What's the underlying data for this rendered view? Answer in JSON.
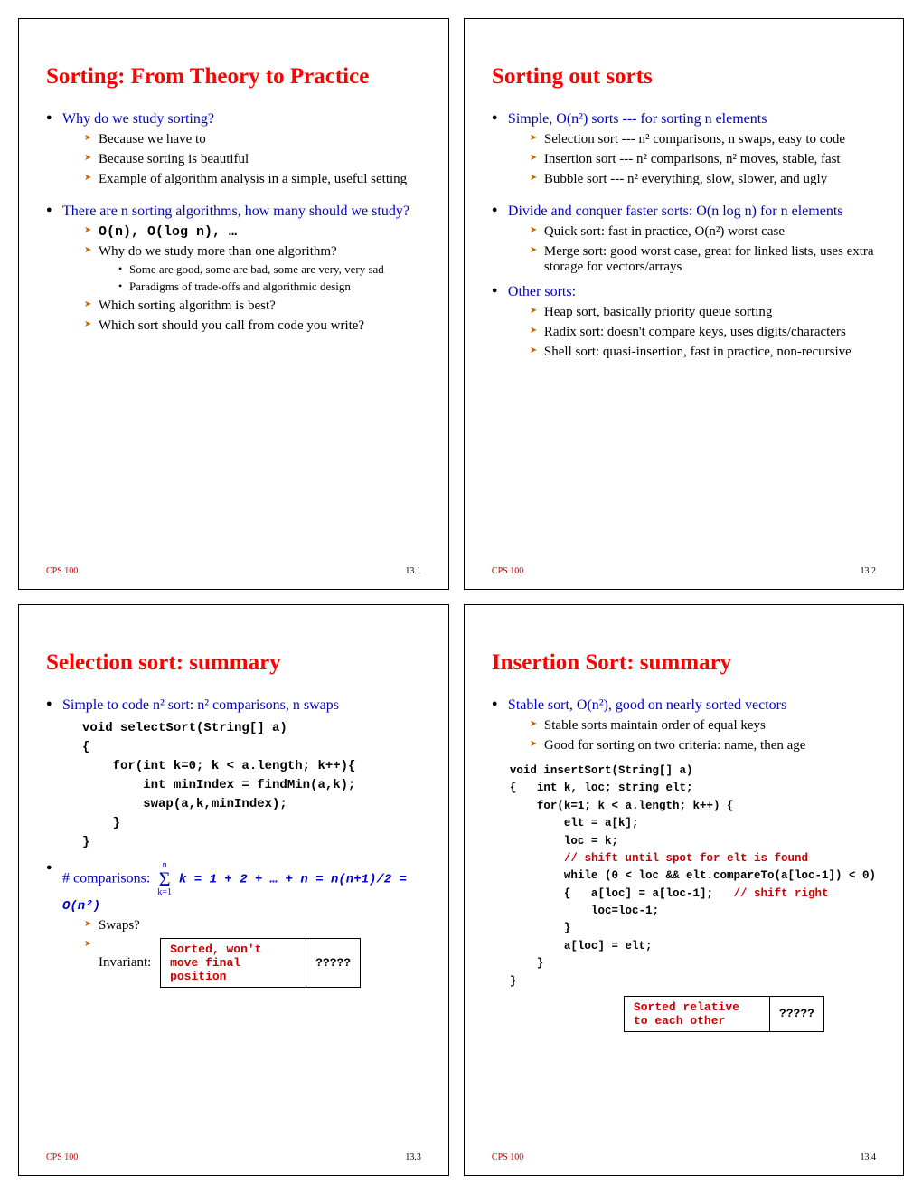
{
  "footer": {
    "course": "CPS 100"
  },
  "slides": [
    {
      "num": "13.1",
      "title": "Sorting: From Theory to Practice",
      "items": [
        {
          "t": "Why do we study sorting?",
          "sub": [
            {
              "t": "Because we have to"
            },
            {
              "t": "Because sorting is beautiful"
            },
            {
              "t": "Example of algorithm analysis in a simple, useful setting"
            }
          ]
        },
        {
          "t": "There are n sorting algorithms, how many should we study?",
          "sub": [
            {
              "mono": "O(n), O(log n), …"
            },
            {
              "t": "Why do we study more than one algorithm?",
              "sub": [
                {
                  "t": "Some are good, some are bad, some are very, very sad"
                },
                {
                  "t": "Paradigms of trade-offs and algorithmic design"
                }
              ]
            },
            {
              "t": "Which sorting algorithm is best?"
            },
            {
              "t": "Which sort should you call from code you write?"
            }
          ]
        }
      ]
    },
    {
      "num": "13.2",
      "title": "Sorting out sorts",
      "items": [
        {
          "t": "Simple, O(n²) sorts --- for sorting n elements",
          "sub": [
            {
              "t": "Selection sort --- n² comparisons, n swaps, easy to code"
            },
            {
              "t": "Insertion sort --- n² comparisons, n² moves, stable, fast"
            },
            {
              "t": "Bubble sort --- n² everything, slow, slower, and ugly"
            }
          ]
        },
        {
          "t": "Divide and conquer faster sorts: O(n log n) for n elements",
          "sub": [
            {
              "t": "Quick sort: fast in practice, O(n²) worst case"
            },
            {
              "t": "Merge sort: good worst case, great for linked lists, uses extra storage for vectors/arrays"
            }
          ]
        },
        {
          "t": "Other sorts:",
          "sub": [
            {
              "t": "Heap sort, basically priority queue sorting"
            },
            {
              "t": "Radix sort: doesn't compare keys, uses digits/characters"
            },
            {
              "t": "Shell sort: quasi-insertion, fast in practice, non-recursive"
            }
          ]
        }
      ]
    },
    {
      "num": "13.3",
      "title": "Selection sort: summary",
      "lead": "Simple to code n² sort: n² comparisons, n swaps",
      "code": "void selectSort(String[] a)\n{\n    for(int k=0; k < a.length; k++){\n        int minIndex = findMin(a,k);\n        swap(a,k,minIndex);\n    }\n}",
      "comp": {
        "label": "# comparisons:",
        "formula": "k = 1 + 2 + … + n = n(n+1)/2 = O(n²)",
        "top": "n",
        "bot": "k=1"
      },
      "tail": [
        {
          "t": "Swaps?"
        },
        {
          "t": "Invariant:",
          "box": {
            "left": "Sorted, won't move final position",
            "right": "?????"
          }
        }
      ]
    },
    {
      "num": "13.4",
      "title": "Insertion Sort: summary",
      "lead": "Stable sort, O(n²), good on nearly sorted vectors",
      "leadsub": [
        {
          "t": "Stable sorts maintain order of equal keys"
        },
        {
          "t": "Good for sorting on two criteria: name, then age"
        }
      ],
      "code": "void insertSort(String[] a)\n{   int k, loc; string elt;\n    for(k=1; k < a.length; k++) {\n        elt = a[k];\n        loc = k;\n        // shift until spot for elt is found\n        while (0 < loc && elt.compareTo(a[loc-1]) < 0)\n        {   a[loc] = a[loc-1];   // shift right\n            loc=loc-1;\n        }\n        a[loc] = elt;\n    }\n}",
      "box": {
        "left": "Sorted relative to each other",
        "right": "?????"
      }
    }
  ]
}
